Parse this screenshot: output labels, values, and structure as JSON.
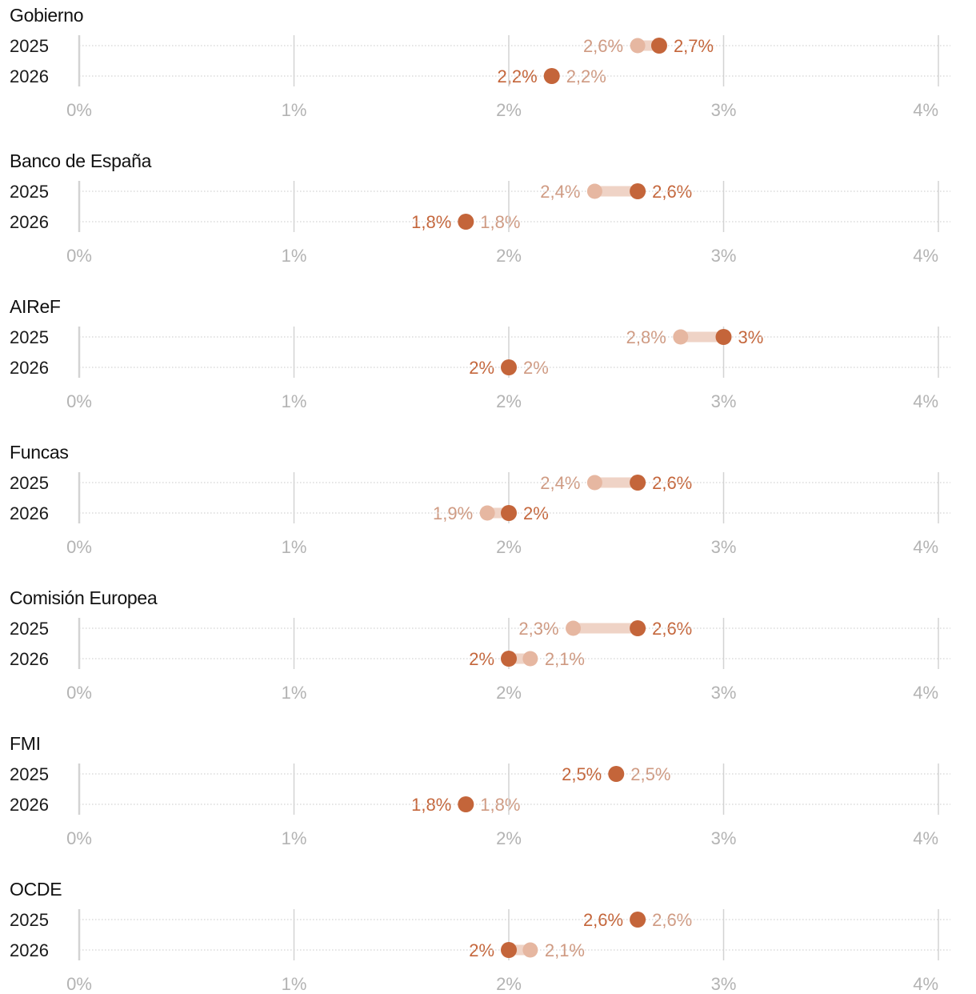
{
  "colors": {
    "current": "#c4653a",
    "previous": "#e6b7a1",
    "current_text": "#c4653a",
    "previous_text": "#cf9a82",
    "connector": "#efd3c6",
    "grid": "#d3d3d3",
    "tick_text": "#b3b3b3",
    "title_text": "#111111"
  },
  "chart_data": [
    {
      "type": "dot",
      "title": "Gobierno",
      "x_ticks": [
        "0%",
        "1%",
        "2%",
        "3%",
        "4%"
      ],
      "xlim": [
        0,
        4
      ],
      "grid": true,
      "rows": [
        {
          "label": "2025",
          "previous": 2.6,
          "current": 2.7,
          "previous_label": "2,6%",
          "current_label": "2,7%"
        },
        {
          "label": "2026",
          "previous": 2.2,
          "current": 2.2,
          "previous_label": "2,2%",
          "current_label": "2,2%"
        }
      ]
    },
    {
      "type": "dot",
      "title": "Banco de España",
      "x_ticks": [
        "0%",
        "1%",
        "2%",
        "3%",
        "4%"
      ],
      "xlim": [
        0,
        4
      ],
      "grid": true,
      "rows": [
        {
          "label": "2025",
          "previous": 2.4,
          "current": 2.6,
          "previous_label": "2,4%",
          "current_label": "2,6%"
        },
        {
          "label": "2026",
          "previous": 1.8,
          "current": 1.8,
          "previous_label": "1,8%",
          "current_label": "1,8%"
        }
      ]
    },
    {
      "type": "dot",
      "title": "AIReF",
      "x_ticks": [
        "0%",
        "1%",
        "2%",
        "3%",
        "4%"
      ],
      "xlim": [
        0,
        4
      ],
      "grid": true,
      "rows": [
        {
          "label": "2025",
          "previous": 2.8,
          "current": 3.0,
          "previous_label": "2,8%",
          "current_label": "3%"
        },
        {
          "label": "2026",
          "previous": 2.0,
          "current": 2.0,
          "previous_label": "2%",
          "current_label": "2%"
        }
      ]
    },
    {
      "type": "dot",
      "title": "Funcas",
      "x_ticks": [
        "0%",
        "1%",
        "2%",
        "3%",
        "4%"
      ],
      "xlim": [
        0,
        4
      ],
      "grid": true,
      "rows": [
        {
          "label": "2025",
          "previous": 2.4,
          "current": 2.6,
          "previous_label": "2,4%",
          "current_label": "2,6%"
        },
        {
          "label": "2026",
          "previous": 1.9,
          "current": 2.0,
          "previous_label": "1,9%",
          "current_label": "2%"
        }
      ]
    },
    {
      "type": "dot",
      "title": "Comisión Europea",
      "x_ticks": [
        "0%",
        "1%",
        "2%",
        "3%",
        "4%"
      ],
      "xlim": [
        0,
        4
      ],
      "grid": true,
      "rows": [
        {
          "label": "2025",
          "previous": 2.3,
          "current": 2.6,
          "previous_label": "2,3%",
          "current_label": "2,6%"
        },
        {
          "label": "2026",
          "previous": 2.1,
          "current": 2.0,
          "previous_label": "2,1%",
          "current_label": "2%"
        }
      ]
    },
    {
      "type": "dot",
      "title": "FMI",
      "x_ticks": [
        "0%",
        "1%",
        "2%",
        "3%",
        "4%"
      ],
      "xlim": [
        0,
        4
      ],
      "grid": true,
      "rows": [
        {
          "label": "2025",
          "previous": 2.5,
          "current": 2.5,
          "previous_label": "2,5%",
          "current_label": "2,5%"
        },
        {
          "label": "2026",
          "previous": 1.8,
          "current": 1.8,
          "previous_label": "1,8%",
          "current_label": "1,8%"
        }
      ]
    },
    {
      "type": "dot",
      "title": "OCDE",
      "x_ticks": [
        "0%",
        "1%",
        "2%",
        "3%",
        "4%"
      ],
      "xlim": [
        0,
        4
      ],
      "grid": true,
      "rows": [
        {
          "label": "2025",
          "previous": 2.6,
          "current": 2.6,
          "previous_label": "2,6%",
          "current_label": "2,6%"
        },
        {
          "label": "2026",
          "previous": 2.1,
          "current": 2.0,
          "previous_label": "2,1%",
          "current_label": "2%"
        }
      ]
    }
  ]
}
